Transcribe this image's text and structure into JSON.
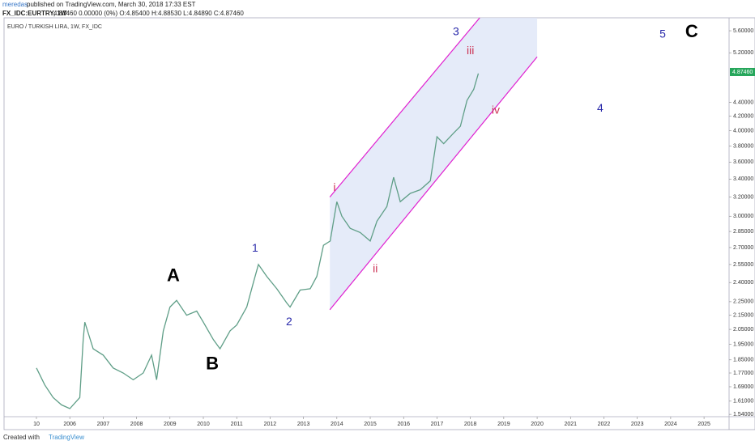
{
  "header": {
    "author": "meredas",
    "published": "published on TradingView.com, March 30, 2018 17:33 EST",
    "symbol": "FX_IDC:EURTRY, 1W",
    "quote": "4.87460 0.00000 (0%) O:4.85400 H:4.88530 L:4.84890 C:4.87460"
  },
  "footer": {
    "created": "Created with",
    "brand": "TradingView"
  },
  "chart_data": {
    "type": "line",
    "title": "EURO / TURKISH LIRA, 1W, FX_IDC",
    "log_scale": true,
    "color": "#5f9e87",
    "x": [
      2005.0,
      2005.25,
      2005.5,
      2005.75,
      2006.0,
      2006.3,
      2006.4,
      2006.45,
      2006.7,
      2007.0,
      2007.3,
      2007.6,
      2007.9,
      2008.2,
      2008.45,
      2008.6,
      2008.8,
      2009.0,
      2009.2,
      2009.5,
      2009.8,
      2010.0,
      2010.3,
      2010.5,
      2010.8,
      2011.0,
      2011.3,
      2011.5,
      2011.65,
      2011.9,
      2012.2,
      2012.5,
      2012.6,
      2012.9,
      2013.2,
      2013.4,
      2013.6,
      2013.8,
      2014.0,
      2014.15,
      2014.4,
      2014.7,
      2015.0,
      2015.2,
      2015.5,
      2015.7,
      2015.9,
      2016.2,
      2016.5,
      2016.8,
      2017.0,
      2017.2,
      2017.5,
      2017.7,
      2017.9,
      2018.1,
      2018.24
    ],
    "values": [
      1.8,
      1.7,
      1.63,
      1.59,
      1.57,
      1.63,
      1.98,
      2.1,
      1.92,
      1.88,
      1.8,
      1.77,
      1.73,
      1.77,
      1.88,
      1.73,
      2.04,
      2.21,
      2.26,
      2.15,
      2.18,
      2.1,
      1.98,
      1.92,
      2.04,
      2.08,
      2.21,
      2.4,
      2.55,
      2.45,
      2.35,
      2.24,
      2.21,
      2.34,
      2.35,
      2.45,
      2.72,
      2.76,
      3.15,
      3.0,
      2.88,
      2.84,
      2.76,
      2.95,
      3.1,
      3.42,
      3.15,
      3.24,
      3.28,
      3.38,
      3.92,
      3.83,
      3.97,
      4.06,
      4.43,
      4.6,
      4.85
    ],
    "xlim": [
      2004.03,
      2025.75
    ],
    "ylim": [
      1.528,
      5.85
    ],
    "xticks": [
      {
        "value": 2005,
        "label": "10"
      },
      2006,
      2007,
      2008,
      2009,
      2010,
      2011,
      2012,
      2013,
      2014,
      2015,
      2016,
      2017,
      2018,
      2019,
      2020,
      2021,
      2022,
      2023,
      2024,
      2025
    ],
    "yticks": [
      {
        "value": 1.54,
        "label": "1.54000"
      },
      {
        "value": 1.61,
        "label": "1.61000"
      },
      {
        "value": 1.69,
        "label": "1.69000"
      },
      {
        "value": 1.77,
        "label": "1.77000"
      },
      {
        "value": 1.85,
        "label": "1.85000"
      },
      {
        "value": 1.95,
        "label": "1.95000"
      },
      {
        "value": 2.05,
        "label": "2.05000"
      },
      {
        "value": 2.15,
        "label": "2.15000"
      },
      {
        "value": 2.25,
        "label": "2.25000"
      },
      {
        "value": 2.4,
        "label": "2.40000"
      },
      {
        "value": 2.55,
        "label": "2.55000"
      },
      {
        "value": 2.7,
        "label": "2.70000"
      },
      {
        "value": 2.85,
        "label": "2.85000"
      },
      {
        "value": 3,
        "label": "3.00000"
      },
      {
        "value": 3.2,
        "label": "3.20000"
      },
      {
        "value": 3.4,
        "label": "3.40000"
      },
      {
        "value": 3.6,
        "label": "3.60000"
      },
      {
        "value": 3.8,
        "label": "3.80000"
      },
      {
        "value": 4,
        "label": "4.00000"
      },
      {
        "value": 4.2,
        "label": "4.20000"
      },
      {
        "value": 4.4,
        "label": "4.40000"
      },
      {
        "value": 5.2,
        "label": "5.20000"
      },
      {
        "value": 5.6,
        "label": "5.60000"
      }
    ],
    "last_price": {
      "value": 4.8746,
      "label": "4.87460",
      "color": "#26a65b"
    },
    "channel": {
      "color": "#e020d0",
      "fill": "#dfe6f8",
      "upper": {
        "x": [
          2013.79,
          2018.28
        ],
        "y": [
          3.2,
          5.85
        ]
      },
      "lower": {
        "x": [
          2013.79,
          2020.0
        ],
        "y": [
          2.19,
          5.13
        ]
      }
    },
    "annotations": [
      {
        "text": "3",
        "x": 2017.57,
        "y": 5.57,
        "color": "#2a2aaa"
      },
      {
        "text": "iii",
        "x": 2018.0,
        "y": 5.23,
        "color": "#cc3355"
      },
      {
        "text": "5",
        "x": 2023.76,
        "y": 5.53,
        "color": "#2a2aaa"
      },
      {
        "text": "C",
        "x": 2024.63,
        "y": 5.57,
        "color": "#000000"
      },
      {
        "text": "i",
        "x": 2013.93,
        "y": 3.3,
        "color": "#cc3355"
      },
      {
        "text": "ii",
        "x": 2015.15,
        "y": 2.51,
        "color": "#cc3355"
      },
      {
        "text": "iv",
        "x": 2018.76,
        "y": 4.28,
        "color": "#cc3355"
      },
      {
        "text": "4",
        "x": 2021.89,
        "y": 4.31,
        "color": "#2a2aaa"
      },
      {
        "text": "1",
        "x": 2011.55,
        "y": 2.69,
        "color": "#2a2aaa"
      },
      {
        "text": "A",
        "x": 2009.1,
        "y": 2.45,
        "color": "#000000"
      },
      {
        "text": "B",
        "x": 2010.27,
        "y": 1.82,
        "color": "#000000"
      },
      {
        "text": "2",
        "x": 2012.57,
        "y": 2.1,
        "color": "#2a2aaa"
      }
    ]
  }
}
